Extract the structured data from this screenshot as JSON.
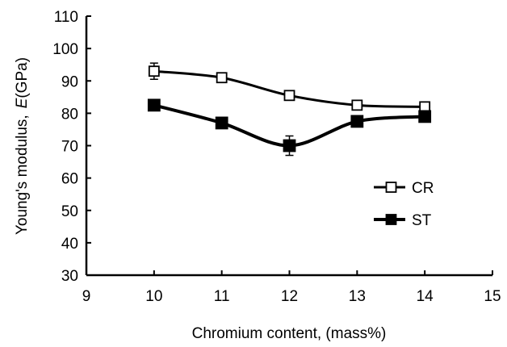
{
  "chart_data": {
    "type": "line",
    "title": "",
    "xlabel": "Chromium content, (mass%)",
    "ylabel": "Young's modulus,",
    "ylabel_symbol": "E",
    "ylabel_unit": "(GPa)",
    "xlim": [
      9,
      15
    ],
    "ylim": [
      30,
      110
    ],
    "xticks": [
      "9",
      "10",
      "11",
      "12",
      "13",
      "14",
      "15"
    ],
    "yticks": [
      "30",
      "40",
      "50",
      "60",
      "70",
      "80",
      "90",
      "100",
      "110"
    ],
    "grid": false,
    "legend_position": "right",
    "series": [
      {
        "name": "CR",
        "marker": "open-square",
        "color": "#000000",
        "x": [
          10,
          11,
          12,
          13,
          14
        ],
        "y": [
          93,
          91,
          85.5,
          82.5,
          82
        ],
        "error": [
          2.5,
          1,
          1,
          1,
          1
        ]
      },
      {
        "name": "ST",
        "marker": "filled-square",
        "color": "#000000",
        "x": [
          10,
          11,
          12,
          13,
          14
        ],
        "y": [
          82.5,
          77,
          70,
          77.5,
          79
        ],
        "error": [
          1,
          1,
          3,
          1,
          1
        ]
      }
    ]
  }
}
